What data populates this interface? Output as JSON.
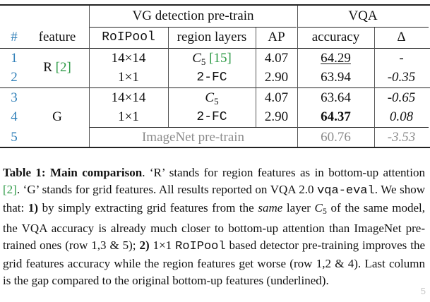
{
  "table": {
    "group_headers": {
      "vg": "VG detection pre-train",
      "vqa": "VQA"
    },
    "col_headers": {
      "num": "#",
      "feature": "feature",
      "roipool": "RoIPool",
      "region_layers": "region layers",
      "ap": "AP",
      "accuracy": "accuracy",
      "delta": "Δ"
    },
    "rows": [
      {
        "num": "1",
        "roipool": "14×14",
        "layers_main": "C",
        "layers_sub": "5",
        "layers_ref": "[15]",
        "ap": "4.07",
        "accuracy": "64.29",
        "delta": "-"
      },
      {
        "num": "2",
        "roipool": "1×1",
        "layers_mono": "2-FC",
        "ap": "2.90",
        "accuracy": "63.94",
        "delta": "-0.35"
      },
      {
        "num": "3",
        "roipool": "14×14",
        "layers_main": "C",
        "layers_sub": "5",
        "ap": "4.07",
        "accuracy": "63.64",
        "delta": "-0.65"
      },
      {
        "num": "4",
        "roipool": "1×1",
        "layers_mono": "2-FC",
        "ap": "2.90",
        "accuracy": "64.37",
        "delta": "0.08"
      },
      {
        "num": "5",
        "imagenet": "ImageNet pre-train",
        "accuracy": "60.76",
        "delta": "-3.53"
      }
    ],
    "feature_groups": {
      "r_label": "R",
      "r_ref": "[2]",
      "g_label": "G"
    }
  },
  "caption": {
    "lead": "Table 1:",
    "lead_title": "Main comparison",
    "p1": ". ‘R’ stands for region features as in bottom-up attention ",
    "ref1": "[2]",
    "p2": ". ‘G’ stands for grid features. All results reported on VQA 2.0 ",
    "code1": "vqa-eval",
    "p3": ". We show that: ",
    "n1": "1)",
    "p4": " by simply extracting grid features from the ",
    "same": "same",
    "p5": " layer ",
    "c5_main": "C",
    "c5_sub": "5",
    "p6": " of the same model, the VQA accuracy is already much closer to bottom-up attention than ImageNet pre-trained ones (row 1,3 & 5); ",
    "n2": "2)",
    "p7": " 1×1 ",
    "code2": "RoIPool",
    "p8": " based detector pre-training improves the grid features accuracy while the region features get worse (row 1,2 & 4). Last column is the gap compared to the original bottom-up features (underlined)."
  },
  "watermark": "5"
}
